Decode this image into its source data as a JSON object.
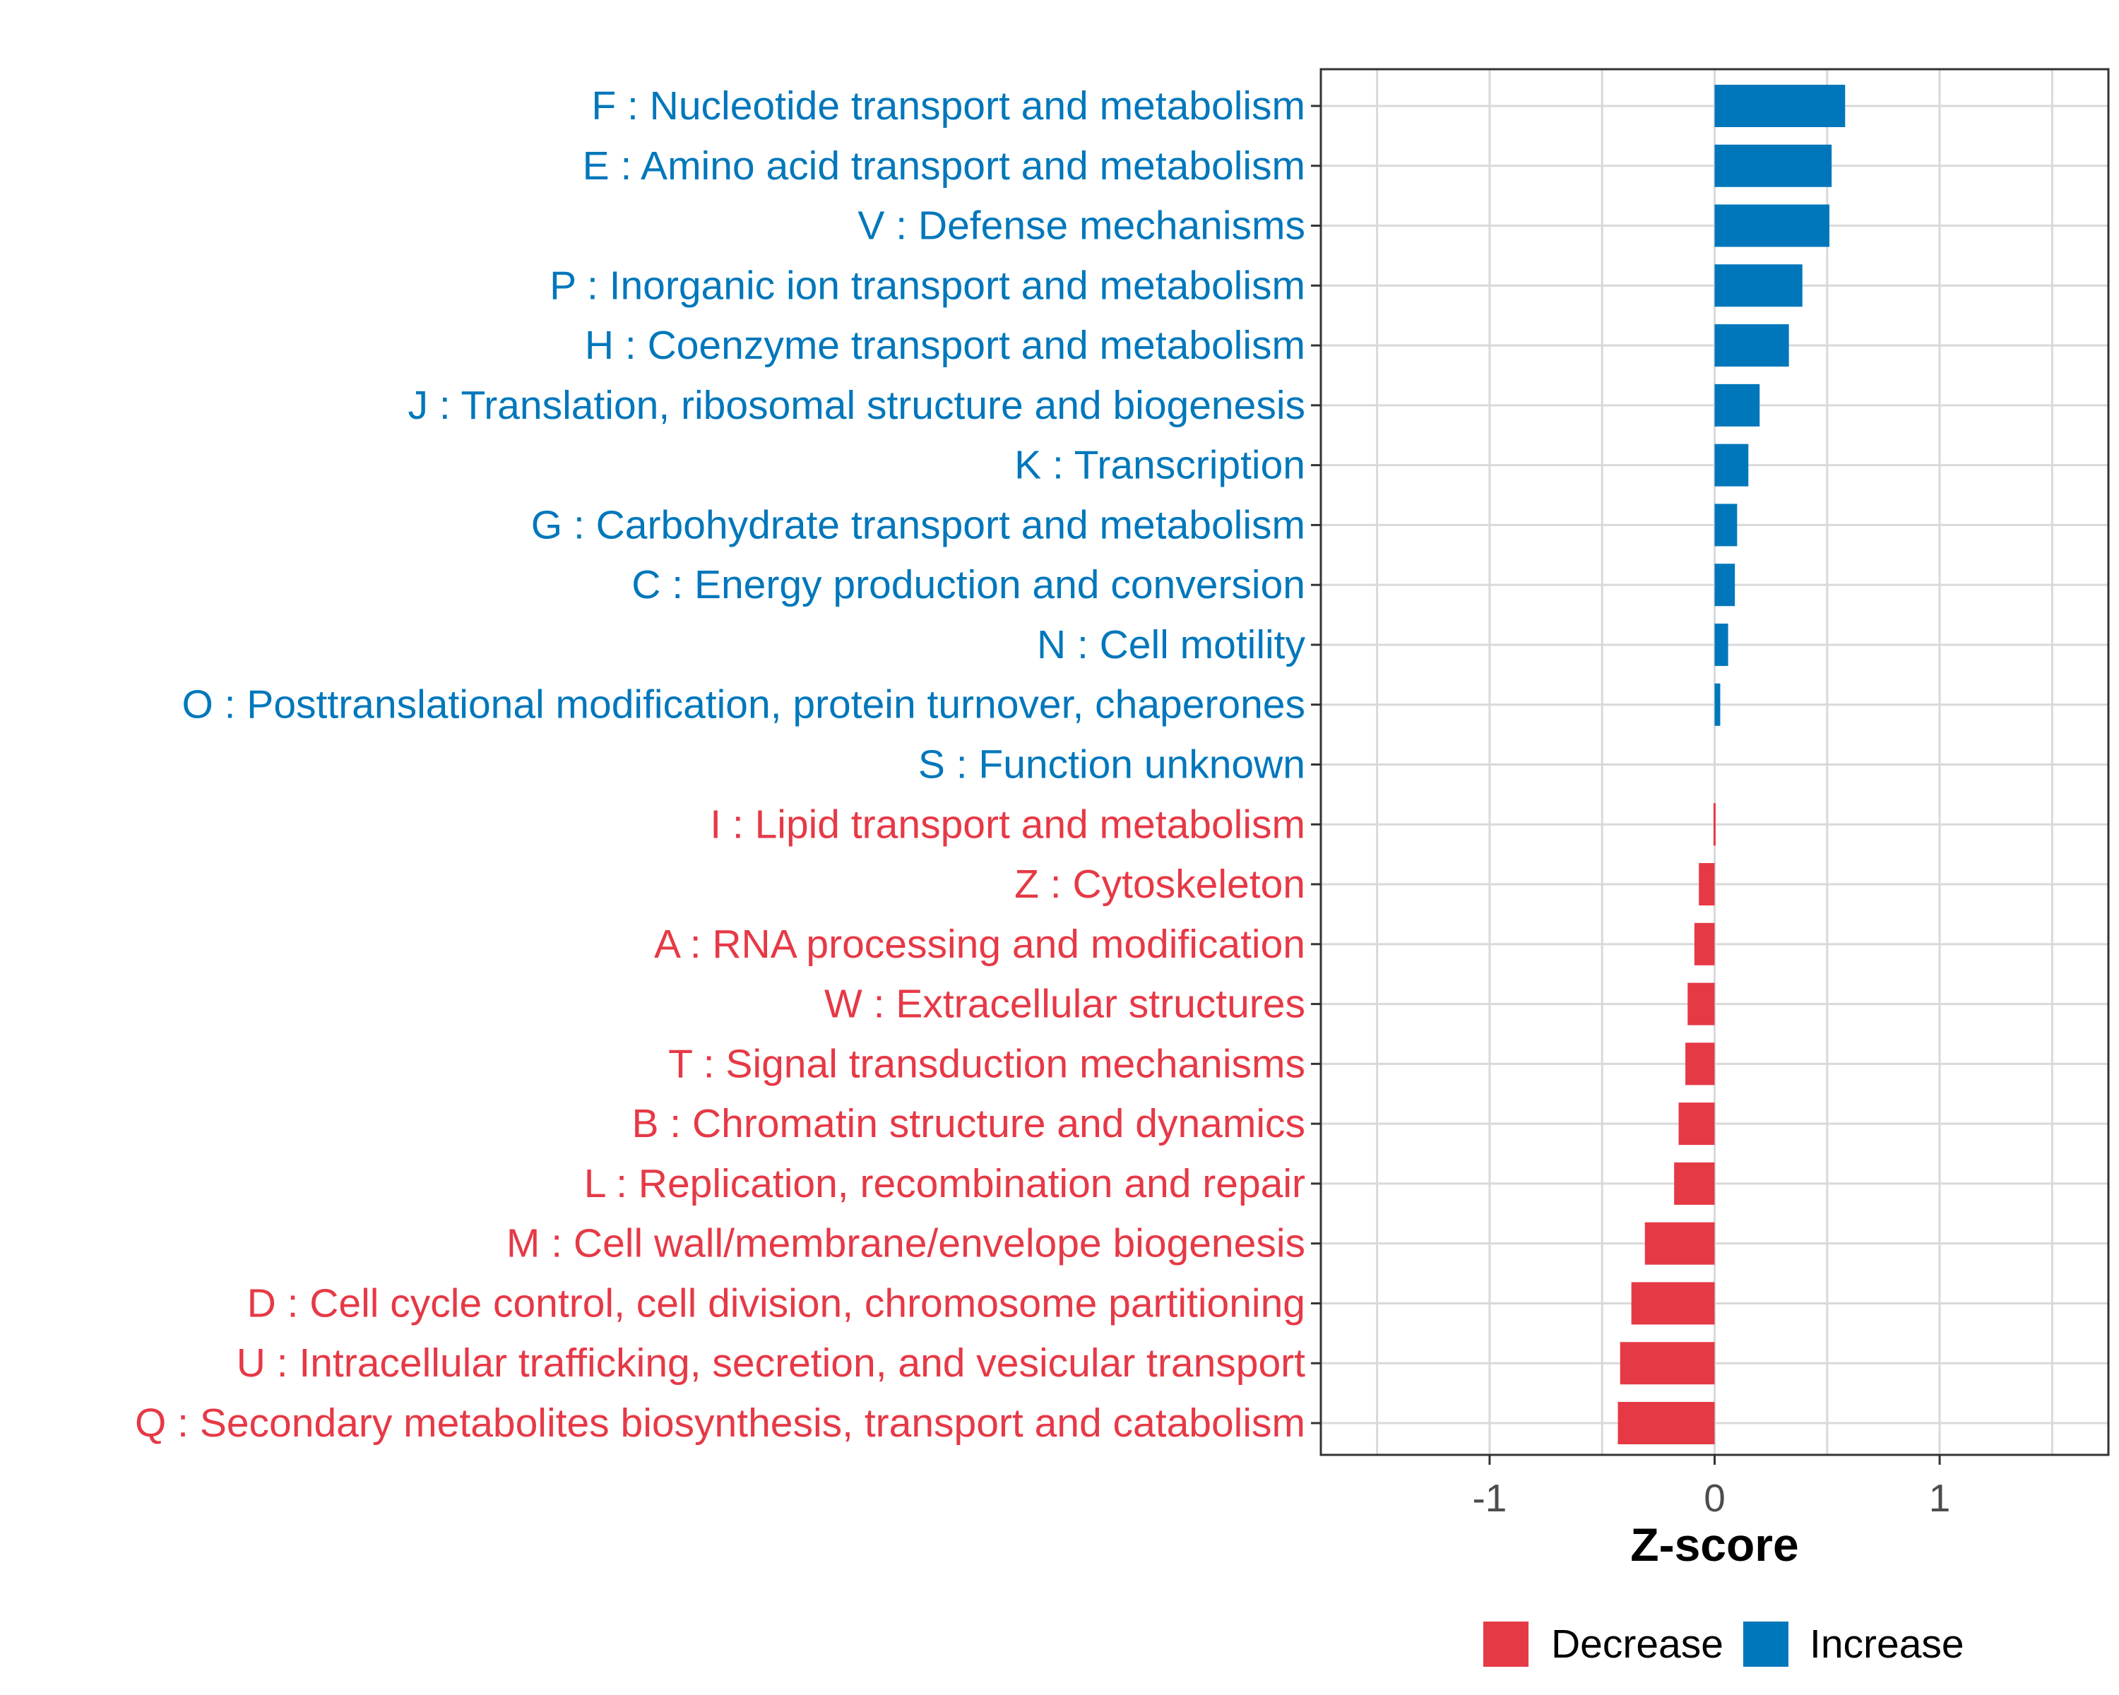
{
  "colors": {
    "increase": "#0077BB",
    "decrease": "#E63946"
  },
  "chart_data": {
    "type": "bar",
    "orientation": "horizontal",
    "xlabel": "Z-score",
    "ylabel": "",
    "xlim": [
      -1.75,
      1.75
    ],
    "xticks": [
      -1,
      0,
      1
    ],
    "xtick_labels": [
      "-1",
      "0",
      "1"
    ],
    "grid": true,
    "legend": {
      "position": "bottom",
      "entries": [
        {
          "name": "Decrease",
          "color": "#E63946"
        },
        {
          "name": "Increase",
          "color": "#0077BB"
        }
      ]
    },
    "categories": [
      "F : Nucleotide transport and metabolism",
      "E : Amino acid transport and metabolism",
      "V : Defense mechanisms",
      "P : Inorganic ion transport and metabolism",
      "H : Coenzyme transport and metabolism",
      "J : Translation, ribosomal structure and biogenesis",
      "K : Transcription",
      "G : Carbohydrate transport and metabolism",
      "C : Energy production and conversion",
      "N : Cell motility",
      "O : Posttranslational modification, protein turnover, chaperones",
      "S : Function unknown",
      "I : Lipid transport and metabolism",
      "Z : Cytoskeleton",
      "A : RNA processing and modification",
      "W : Extracellular structures",
      "T : Signal transduction mechanisms",
      "B : Chromatin structure and dynamics",
      "L : Replication, recombination and repair",
      "M : Cell wall/membrane/envelope biogenesis",
      "D : Cell cycle control, cell division, chromosome partitioning",
      "U : Intracellular trafficking, secretion, and vesicular transport",
      "Q : Secondary metabolites biosynthesis, transport and catabolism"
    ],
    "values": [
      0.58,
      0.52,
      0.51,
      0.39,
      0.33,
      0.2,
      0.15,
      0.1,
      0.09,
      0.06,
      0.025,
      0.0,
      -0.005,
      -0.07,
      -0.09,
      -0.12,
      -0.13,
      -0.16,
      -0.18,
      -0.31,
      -0.37,
      -0.42,
      -0.43
    ],
    "groups": [
      "Increase",
      "Increase",
      "Increase",
      "Increase",
      "Increase",
      "Increase",
      "Increase",
      "Increase",
      "Increase",
      "Increase",
      "Increase",
      "Increase",
      "Decrease",
      "Decrease",
      "Decrease",
      "Decrease",
      "Decrease",
      "Decrease",
      "Decrease",
      "Decrease",
      "Decrease",
      "Decrease",
      "Decrease"
    ]
  }
}
